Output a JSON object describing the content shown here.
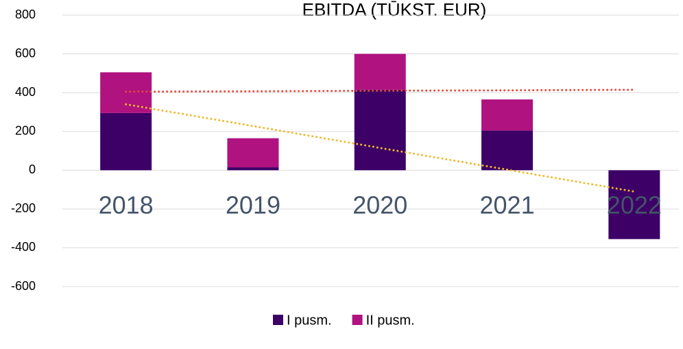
{
  "chart_data": {
    "type": "bar",
    "stacked": true,
    "title": "EBITDA (TŪKST. EUR)",
    "categories": [
      "2018",
      "2019",
      "2020",
      "2021",
      "2022"
    ],
    "series": [
      {
        "name": "I pusm.",
        "color": "#3d0066",
        "values": [
          295,
          15,
          415,
          205,
          -355
        ]
      },
      {
        "name": "II pusm.",
        "color": "#b0127f",
        "values": [
          210,
          150,
          185,
          160,
          0
        ]
      }
    ],
    "trendlines": [
      {
        "color": "#e8473b",
        "values": [
          405,
          407,
          410,
          412,
          415
        ]
      },
      {
        "color": "#f0b829",
        "values": [
          340,
          228,
          115,
          3,
          -110
        ]
      }
    ],
    "ylim": [
      -600,
      800
    ],
    "yticks": [
      -600,
      -400,
      -200,
      0,
      200,
      400,
      600,
      800
    ],
    "grid": true,
    "legend": "bottom"
  }
}
